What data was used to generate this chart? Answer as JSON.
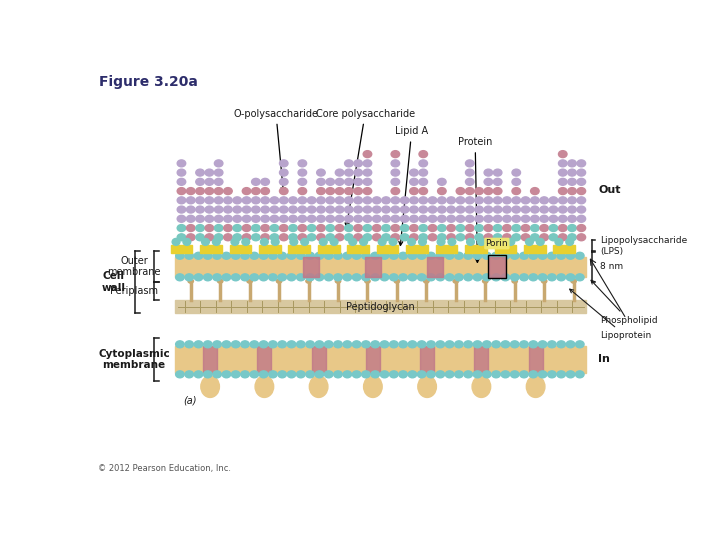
{
  "title": "Figure 3.20a",
  "title_color": "#2d2d6b",
  "title_fontsize": 10,
  "bg_color": "#ffffff",
  "copyright": "© 2012 Pearson Education, Inc.",
  "footnote": "(a)",
  "labels": {
    "o_poly": "O-polysaccharide",
    "core_poly": "Core polysaccharide",
    "lipid_a": "Lipid A",
    "protein": "Protein",
    "out": "Out",
    "lps": "Lipopolysaccharide\n(LPS)",
    "porin": "Porin",
    "8nm": "8 nm",
    "outer_membrane": "Outer\nmembrane",
    "cell_wall": "Cell\nwall",
    "periplasm": "Periplasm",
    "peptidoglycan": "Peptidoglycan",
    "phospholipid": "Phospholipid",
    "lipoprotein": "Lipoprotein",
    "cytoplasmic_membrane": "Cytoplasmic\nmembrane",
    "in": "In"
  },
  "colors": {
    "o_poly_purple": "#b8a4cc",
    "o_poly_pink": "#c88898",
    "core_teal": "#78c8c0",
    "lipid_a_yellow": "#e8d030",
    "membrane_tan": "#e8c888",
    "porin_pink": "#c07888",
    "phospholipid_head": "#78c8c8",
    "peptidoglycan_bg": "#d8c8a0",
    "lipoprotein_tan": "#c8a870",
    "text_dark": "#1a1a1a",
    "bracket_color": "#1a1a1a",
    "cyto_teal": "#40b8b8"
  }
}
